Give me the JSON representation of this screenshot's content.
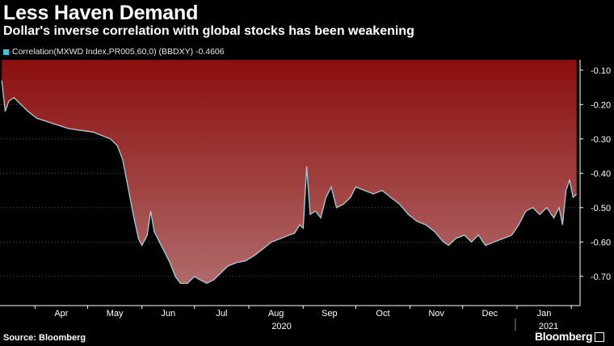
{
  "title": "Less Haven Demand",
  "subtitle": "Dollar's inverse correlation with global stocks has been weakening",
  "source": "Source: Bloomberg",
  "brand": "Bloomberg",
  "colors": {
    "background": "#000000",
    "line": "#9fd3dc",
    "legend_swatch": "#39c6d6",
    "fill_top": "#8b0e0e",
    "fill_bottom": "#b06a6a",
    "grid": "#666666"
  },
  "legend": {
    "label": "Correlation(MXWD Index,PR005,60,0) (BBDXY) -0.4606"
  },
  "chart_data": {
    "type": "area",
    "title": "Less Haven Demand",
    "subtitle": "Dollar's inverse correlation with global stocks has been weakening",
    "series": [
      {
        "name": "Correlation(MXWD Index,PR005,60,0) (BBDXY)",
        "last_value": -0.4606,
        "points": [
          [
            "2020-03-13",
            -0.13
          ],
          [
            "2020-03-15",
            -0.22
          ],
          [
            "2020-03-17",
            -0.19
          ],
          [
            "2020-03-20",
            -0.18
          ],
          [
            "2020-03-24",
            -0.2
          ],
          [
            "2020-03-28",
            -0.22
          ],
          [
            "2020-04-02",
            -0.24
          ],
          [
            "2020-04-08",
            -0.25
          ],
          [
            "2020-04-14",
            -0.26
          ],
          [
            "2020-04-20",
            -0.27
          ],
          [
            "2020-04-27",
            -0.275
          ],
          [
            "2020-05-04",
            -0.28
          ],
          [
            "2020-05-09",
            -0.29
          ],
          [
            "2020-05-14",
            -0.3
          ],
          [
            "2020-05-18",
            -0.32
          ],
          [
            "2020-05-21",
            -0.36
          ],
          [
            "2020-05-24",
            -0.44
          ],
          [
            "2020-05-27",
            -0.52
          ],
          [
            "2020-05-30",
            -0.59
          ],
          [
            "2020-06-01",
            -0.61
          ],
          [
            "2020-06-04",
            -0.58
          ],
          [
            "2020-06-06",
            -0.51
          ],
          [
            "2020-06-08",
            -0.57
          ],
          [
            "2020-06-11",
            -0.6
          ],
          [
            "2020-06-14",
            -0.63
          ],
          [
            "2020-06-17",
            -0.66
          ],
          [
            "2020-06-20",
            -0.7
          ],
          [
            "2020-06-23",
            -0.72
          ],
          [
            "2020-06-27",
            -0.72
          ],
          [
            "2020-07-01",
            -0.7
          ],
          [
            "2020-07-04",
            -0.71
          ],
          [
            "2020-07-08",
            -0.72
          ],
          [
            "2020-07-12",
            -0.71
          ],
          [
            "2020-07-16",
            -0.69
          ],
          [
            "2020-07-20",
            -0.67
          ],
          [
            "2020-07-25",
            -0.66
          ],
          [
            "2020-07-30",
            -0.655
          ],
          [
            "2020-08-04",
            -0.64
          ],
          [
            "2020-08-09",
            -0.62
          ],
          [
            "2020-08-14",
            -0.6
          ],
          [
            "2020-08-19",
            -0.59
          ],
          [
            "2020-08-24",
            -0.58
          ],
          [
            "2020-08-27",
            -0.575
          ],
          [
            "2020-08-30",
            -0.55
          ],
          [
            "2020-09-01",
            -0.56
          ],
          [
            "2020-09-03",
            -0.38
          ],
          [
            "2020-09-05",
            -0.52
          ],
          [
            "2020-09-08",
            -0.51
          ],
          [
            "2020-09-11",
            -0.53
          ],
          [
            "2020-09-14",
            -0.47
          ],
          [
            "2020-09-17",
            -0.44
          ],
          [
            "2020-09-20",
            -0.5
          ],
          [
            "2020-09-24",
            -0.49
          ],
          [
            "2020-09-28",
            -0.47
          ],
          [
            "2020-10-01",
            -0.44
          ],
          [
            "2020-10-06",
            -0.45
          ],
          [
            "2020-10-11",
            -0.46
          ],
          [
            "2020-10-16",
            -0.45
          ],
          [
            "2020-10-21",
            -0.47
          ],
          [
            "2020-10-26",
            -0.49
          ],
          [
            "2020-10-31",
            -0.52
          ],
          [
            "2020-11-05",
            -0.54
          ],
          [
            "2020-11-10",
            -0.55
          ],
          [
            "2020-11-15",
            -0.57
          ],
          [
            "2020-11-20",
            -0.6
          ],
          [
            "2020-11-23",
            -0.61
          ],
          [
            "2020-11-27",
            -0.59
          ],
          [
            "2020-12-02",
            -0.58
          ],
          [
            "2020-12-06",
            -0.6
          ],
          [
            "2020-12-10",
            -0.58
          ],
          [
            "2020-12-14",
            -0.61
          ],
          [
            "2020-12-19",
            -0.6
          ],
          [
            "2020-12-24",
            -0.59
          ],
          [
            "2020-12-29",
            -0.58
          ],
          [
            "2021-01-02",
            -0.55
          ],
          [
            "2021-01-06",
            -0.51
          ],
          [
            "2021-01-10",
            -0.5
          ],
          [
            "2021-01-14",
            -0.52
          ],
          [
            "2021-01-18",
            -0.5
          ],
          [
            "2021-01-22",
            -0.53
          ],
          [
            "2021-01-25",
            -0.5
          ],
          [
            "2021-01-27",
            -0.55
          ],
          [
            "2021-01-29",
            -0.45
          ],
          [
            "2021-01-31",
            -0.42
          ],
          [
            "2021-02-02",
            -0.47
          ],
          [
            "2021-02-04",
            -0.4606
          ]
        ]
      }
    ],
    "x_axis": {
      "months": [
        "Apr",
        "May",
        "Jun",
        "Jul",
        "Aug",
        "Sep",
        "Oct",
        "Nov",
        "Dec",
        "Jan"
      ],
      "year_labels": [
        "2020",
        "2021"
      ],
      "range": [
        "2020-03-12",
        "2021-02-06"
      ]
    },
    "y_axis": {
      "ticks": [
        -0.1,
        -0.2,
        -0.3,
        -0.4,
        -0.5,
        -0.6,
        -0.7
      ],
      "tick_labels": [
        "-0.10",
        "-0.20",
        "-0.30",
        "-0.40",
        "-0.50",
        "-0.60",
        "-0.70"
      ],
      "range": [
        -0.785,
        -0.07
      ],
      "position": "right"
    },
    "fill": "between series and top of plot",
    "grid": true
  }
}
